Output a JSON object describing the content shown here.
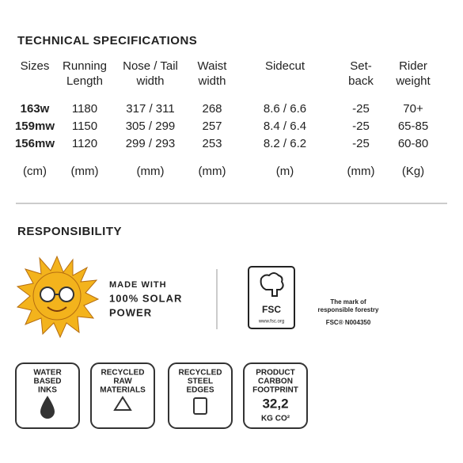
{
  "specs": {
    "title": "TECHNICAL SPECIFICATIONS",
    "headers": [
      [
        "Sizes"
      ],
      [
        "Running",
        "Length"
      ],
      [
        "Nose / Tail",
        "width"
      ],
      [
        "Waist",
        "width"
      ],
      [
        "Sidecut"
      ],
      [
        "Set-",
        "back"
      ],
      [
        "Rider",
        "weight"
      ]
    ],
    "rows": [
      [
        "163w",
        "1180",
        "317 / 311",
        "268",
        "8.6 / 6.6",
        "-25",
        "70+"
      ],
      [
        "159mw",
        "1150",
        "305 / 299",
        "257",
        "8.4 / 6.4",
        "-25",
        "65-85"
      ],
      [
        "156mw",
        "1120",
        "299 / 293",
        "253",
        "8.2 / 6.2",
        "-25",
        "60-80"
      ]
    ],
    "units": [
      "(cm)",
      "(mm)",
      "(mm)",
      "(mm)",
      "(m)",
      "(mm)",
      "(Kg)"
    ]
  },
  "responsibility": {
    "title": "RESPONSIBILITY",
    "solar": [
      "MADE WITH",
      "100% SOLAR",
      "POWER"
    ],
    "fsc": {
      "logo": "FSC",
      "url": "www.fsc.org",
      "mark": [
        "The mark of",
        "responsible forestry"
      ],
      "code": "FSC® N004350"
    },
    "badges": [
      [
        "WATER",
        "BASED",
        "INKS"
      ],
      [
        "RECYCLED",
        "RAW",
        "MATERIALS"
      ],
      [
        "RECYCLED",
        "STEEL",
        "EDGES"
      ],
      [
        "PRODUCT",
        "CARBON",
        "FOOTPRINT"
      ]
    ],
    "carbon": {
      "value": "32,2",
      "unit": "KG CO²"
    }
  }
}
